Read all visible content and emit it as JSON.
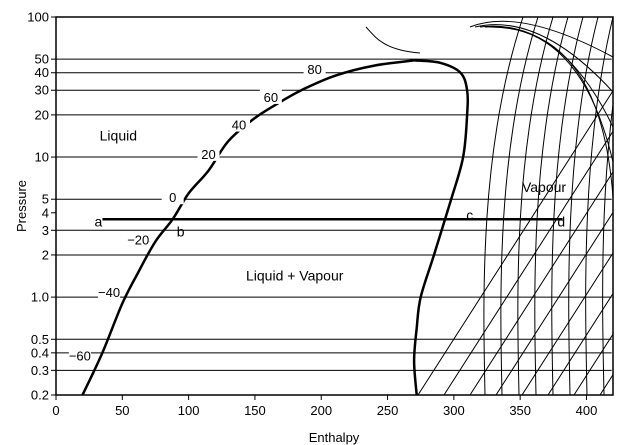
{
  "chart_data": {
    "type": "line",
    "title": "",
    "xlabel": "Enthalpy",
    "ylabel": "Pressure",
    "x_ticks": [
      0,
      50,
      100,
      150,
      200,
      250,
      300,
      350,
      400
    ],
    "y_scale": "log",
    "y_ticks": [
      {
        "value": 0.2,
        "label": "0.2"
      },
      {
        "value": 0.3,
        "label": "0.3"
      },
      {
        "value": 0.4,
        "label": "0.4"
      },
      {
        "value": 0.5,
        "label": "0.5"
      },
      {
        "value": 1,
        "label": "1.0"
      },
      {
        "value": 2,
        "label": "2"
      },
      {
        "value": 3,
        "label": "3"
      },
      {
        "value": 4,
        "label": "4"
      },
      {
        "value": 5,
        "label": "5"
      },
      {
        "value": 10,
        "label": "10"
      },
      {
        "value": 20,
        "label": "20"
      },
      {
        "value": 30,
        "label": "30"
      },
      {
        "value": 40,
        "label": "40"
      },
      {
        "value": 50,
        "label": "50"
      },
      {
        "value": 100,
        "label": "100"
      }
    ],
    "xlim": [
      0,
      420
    ],
    "ylim": [
      0.2,
      100
    ],
    "grid": false,
    "saturation_dome": {
      "liquid_line": [
        [
          20,
          0.2
        ],
        [
          35,
          0.4
        ],
        [
          50,
          0.9
        ],
        [
          62,
          1.5
        ],
        [
          75,
          2.5
        ],
        [
          88,
          3.6
        ],
        [
          100,
          5.5
        ],
        [
          115,
          8
        ],
        [
          130,
          13
        ],
        [
          150,
          19
        ],
        [
          170,
          25
        ],
        [
          185,
          30
        ],
        [
          210,
          38
        ],
        [
          240,
          45
        ],
        [
          270,
          49
        ]
      ],
      "vapour_line": [
        [
          270,
          49
        ],
        [
          290,
          47
        ],
        [
          305,
          40
        ],
        [
          310,
          30
        ],
        [
          310,
          20
        ],
        [
          307,
          10
        ],
        [
          298,
          5
        ],
        [
          285,
          2
        ],
        [
          275,
          1
        ],
        [
          272,
          0.6
        ],
        [
          270,
          0.35
        ],
        [
          272,
          0.2
        ]
      ]
    },
    "isotherm_labels": [
      {
        "label": "80",
        "h": 195,
        "p": 41
      },
      {
        "label": "60",
        "h": 162,
        "p": 26
      },
      {
        "label": "40",
        "h": 138,
        "p": 16.5
      },
      {
        "label": "20",
        "h": 115,
        "p": 10.2
      },
      {
        "label": "0",
        "h": 88,
        "p": 5
      },
      {
        "label": "−20",
        "h": 62,
        "p": 2.5
      },
      {
        "label": "−40",
        "h": 40,
        "p": 1.05
      },
      {
        "label": "−60",
        "h": 18,
        "p": 0.37
      }
    ],
    "isobar_segments": [
      {
        "p": 50,
        "h": [
          0,
          419
        ]
      },
      {
        "p": 40,
        "h": [
          0,
          419
        ]
      },
      {
        "p": 30,
        "h": [
          0,
          419
        ]
      },
      {
        "p": 20,
        "h": [
          0,
          419
        ]
      },
      {
        "p": 10,
        "h": [
          0,
          419
        ]
      },
      {
        "p": 5,
        "h": [
          0,
          419
        ]
      },
      {
        "p": 3,
        "h": [
          0,
          419
        ]
      },
      {
        "p": 2,
        "h": [
          0,
          419
        ]
      },
      {
        "p": 1,
        "h": [
          0,
          419
        ]
      },
      {
        "p": 0.5,
        "h": [
          0,
          419
        ]
      },
      {
        "p": 0.4,
        "h": [
          0,
          419
        ]
      },
      {
        "p": 0.3,
        "h": [
          0,
          419
        ]
      }
    ],
    "cycle_line": {
      "p": 3.6,
      "h": [
        35,
        382
      ]
    },
    "annotations": [
      {
        "text": "Liquid",
        "h": 47,
        "p": 14
      },
      {
        "text": "Liquid + Vapour",
        "h": 180,
        "p": 1.4
      },
      {
        "text": "Vapour",
        "h": 368,
        "p": 6
      },
      {
        "text": "a",
        "h": 32,
        "p": 3.4
      },
      {
        "text": "b",
        "h": 94,
        "p": 2.9
      },
      {
        "text": "c",
        "h": 312,
        "p": 3.8
      },
      {
        "text": "d",
        "h": 381,
        "p": 3.4
      }
    ]
  }
}
